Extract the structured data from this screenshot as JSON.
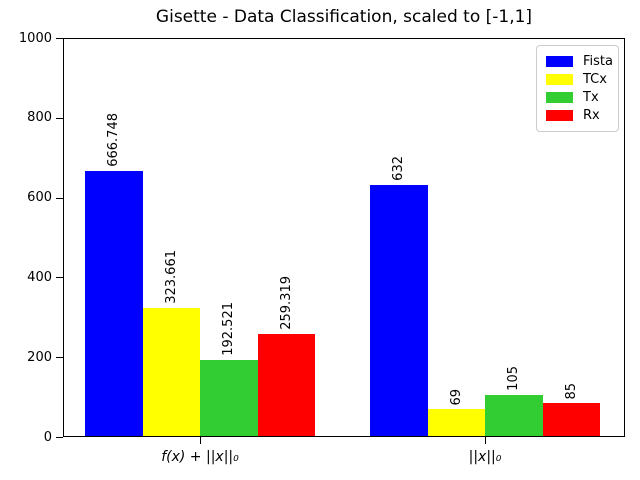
{
  "window": {
    "background": "#ffffff"
  },
  "chart_data": {
    "type": "bar",
    "title": "Gisette - Data Classification, scaled to [-1,1]",
    "categories": [
      "f(x) + ||x||₀",
      "||x||₀"
    ],
    "series": [
      {
        "name": "Fista",
        "color": "#0000ff",
        "values": [
          666.748,
          632
        ]
      },
      {
        "name": "TCx",
        "color": "#ffff00",
        "values": [
          323.661,
          69
        ]
      },
      {
        "name": "Tx",
        "color": "#32cd32",
        "values": [
          192.521,
          105
        ]
      },
      {
        "name": "Rx",
        "color": "#ff0000",
        "values": [
          259.319,
          85
        ]
      }
    ],
    "bar_labels": [
      [
        "666.748",
        "323.661",
        "192.521",
        "259.319"
      ],
      [
        "632",
        "69",
        "105",
        "85"
      ]
    ],
    "bar_label_rotation": 90,
    "xlabel": "",
    "ylabel": "",
    "ylim": [
      0,
      1000
    ],
    "yticks": [
      0,
      200,
      400,
      600,
      800,
      1000
    ],
    "grid": false,
    "legend": {
      "position": "upper right",
      "entries": [
        "Fista",
        "TCx",
        "Tx",
        "Rx"
      ]
    }
  }
}
